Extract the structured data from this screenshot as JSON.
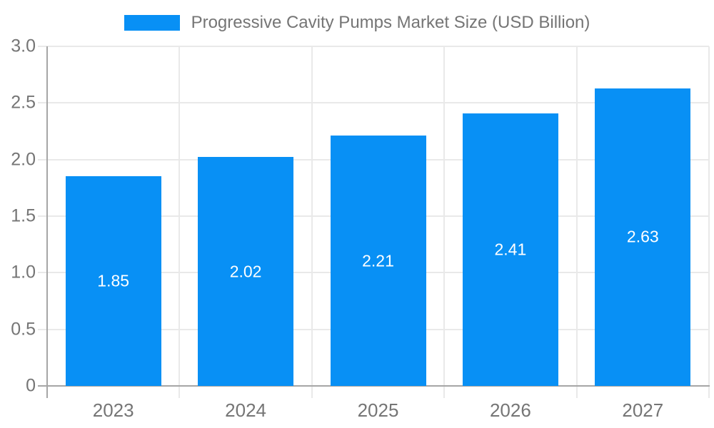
{
  "chart_data": {
    "type": "bar",
    "title": "Progressive Cavity Pumps Market Size (USD Billion)",
    "categories": [
      "2023",
      "2024",
      "2025",
      "2026",
      "2027"
    ],
    "values": [
      1.85,
      2.02,
      2.21,
      2.41,
      2.63
    ],
    "value_labels": [
      "1.85",
      "2.02",
      "2.21",
      "2.41",
      "2.63"
    ],
    "xlabel": "",
    "ylabel": "",
    "ylim": [
      0,
      3.0
    ],
    "ytick_labels": [
      "0",
      "0.5",
      "1.0",
      "1.5",
      "2.0",
      "2.5",
      "3.0"
    ],
    "grid": true,
    "legend_position": "top",
    "colors": {
      "bar": "#0890F5",
      "value_label": "#ffffff",
      "axis_text": "#757575",
      "grid_line": "#e9e9e9",
      "axis_line": "#a6a6a6",
      "background": "#ffffff"
    }
  }
}
